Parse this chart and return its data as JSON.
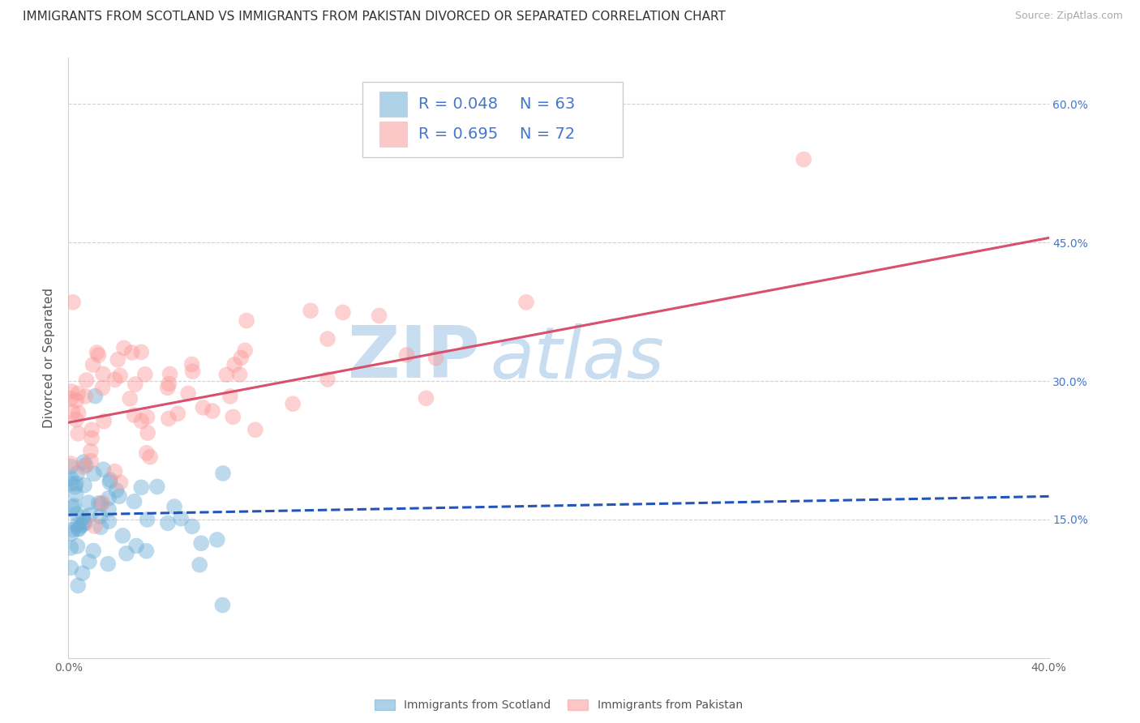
{
  "title": "IMMIGRANTS FROM SCOTLAND VS IMMIGRANTS FROM PAKISTAN DIVORCED OR SEPARATED CORRELATION CHART",
  "source": "Source: ZipAtlas.com",
  "ylabel": "Divorced or Separated",
  "xlim": [
    0.0,
    0.4
  ],
  "ylim": [
    0.0,
    0.65
  ],
  "xtick_positions": [
    0.0,
    0.1,
    0.2,
    0.3,
    0.4
  ],
  "xtick_labels": [
    "0.0%",
    "",
    "",
    "",
    "40.0%"
  ],
  "ytick_positions": [
    0.15,
    0.3,
    0.45,
    0.6
  ],
  "ytick_labels": [
    "15.0%",
    "30.0%",
    "45.0%",
    "60.0%"
  ],
  "scotland_color": "#6baed6",
  "scotland_line_color": "#2255bb",
  "pakistan_color": "#fb9a99",
  "pakistan_line_color": "#d94f6e",
  "scotland_R": 0.048,
  "scotland_N": 63,
  "pakistan_R": 0.695,
  "pakistan_N": 72,
  "scot_line_x0": 0.0,
  "scot_line_y0": 0.155,
  "scot_line_x1": 0.4,
  "scot_line_y1": 0.175,
  "pak_line_x0": 0.0,
  "pak_line_y0": 0.255,
  "pak_line_x1": 0.4,
  "pak_line_y1": 0.455,
  "watermark_zip": "ZIP",
  "watermark_atlas": "atlas",
  "watermark_color": "#c8ddf0",
  "grid_color": "#d0d0d0",
  "background_color": "#ffffff",
  "title_fontsize": 11,
  "axis_label_fontsize": 11,
  "tick_fontsize": 10,
  "legend_fontsize": 14,
  "source_fontsize": 9,
  "right_tick_color": "#4477cc",
  "scatter_alpha": 0.45,
  "scatter_size": 200,
  "seed_scotland": 42,
  "seed_pakistan": 99
}
